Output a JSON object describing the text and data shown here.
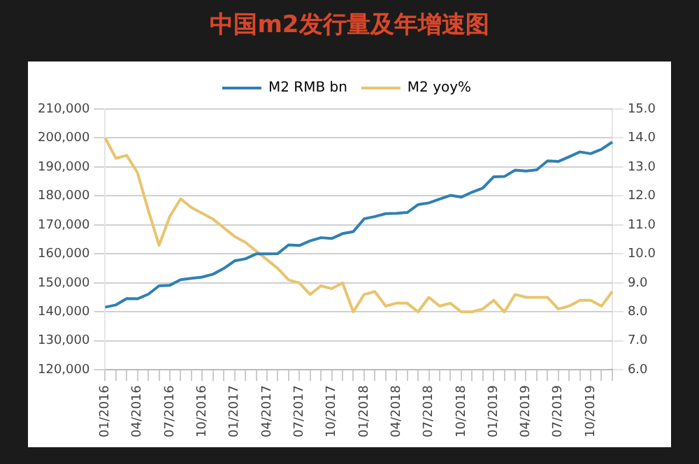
{
  "chart_data": {
    "type": "line",
    "title": "中国m2发行量及年增速图",
    "categories": [
      "01/2016",
      null,
      null,
      "04/2016",
      null,
      null,
      "07/2016",
      null,
      null,
      "10/2016",
      null,
      null,
      "01/2017",
      null,
      null,
      "04/2017",
      null,
      null,
      "07/2017",
      null,
      null,
      "10/2017",
      null,
      null,
      "01/2018",
      null,
      null,
      "04/2018",
      null,
      null,
      "07/2018",
      null,
      null,
      "10/2018",
      null,
      null,
      "01/2019",
      null,
      null,
      "04/2019",
      null,
      null,
      "07/2019",
      null,
      null,
      "10/2019",
      null,
      null
    ],
    "series": [
      {
        "name": "M2 RMB bn",
        "color": "#2f80b2",
        "values": [
          141600,
          142400,
          144600,
          144500,
          146100,
          149000,
          149200,
          151100,
          151600,
          152000,
          153000,
          155000,
          157600,
          158300,
          160000,
          160000,
          160100,
          163100,
          162900,
          164500,
          165600,
          165300,
          167000,
          167700,
          172100,
          172900,
          173900,
          174000,
          174300,
          177000,
          177600,
          178900,
          180200,
          179600,
          181300,
          182700,
          186600,
          186700,
          188900,
          188600,
          189000,
          192100,
          191900,
          193500,
          195200,
          194600,
          196100,
          198600
        ]
      },
      {
        "name": "M2 yoy%",
        "color": "#e8c46c",
        "axis": "y2",
        "values": [
          14.0,
          13.3,
          13.4,
          12.8,
          11.5,
          10.3,
          11.3,
          11.9,
          11.6,
          11.4,
          11.2,
          10.9,
          10.6,
          10.4,
          10.1,
          9.8,
          9.5,
          9.1,
          9.0,
          8.6,
          8.9,
          8.8,
          9.0,
          8.0,
          8.6,
          8.7,
          8.2,
          8.3,
          8.3,
          8.0,
          8.5,
          8.2,
          8.3,
          8.0,
          8.0,
          8.1,
          8.4,
          8.0,
          8.6,
          8.5,
          8.5,
          8.5,
          8.1,
          8.2,
          8.4,
          8.4,
          8.2,
          8.7
        ]
      }
    ],
    "ylim": [
      120000,
      210000
    ],
    "yticks": [
      {
        "value": 120000,
        "label": "120,000"
      },
      {
        "value": 130000,
        "label": "130,000"
      },
      {
        "value": 140000,
        "label": "140,000"
      },
      {
        "value": 150000,
        "label": "150,000"
      },
      {
        "value": 160000,
        "label": "160,000"
      },
      {
        "value": 170000,
        "label": "170,000"
      },
      {
        "value": 180000,
        "label": "180,000"
      },
      {
        "value": 190000,
        "label": "190,000"
      },
      {
        "value": 200000,
        "label": "200,000"
      },
      {
        "value": 210000,
        "label": "210,000"
      }
    ],
    "y2lim": [
      6,
      15
    ],
    "y2ticks": [
      {
        "value": 6,
        "label": "6.0"
      },
      {
        "value": 7,
        "label": "7.0"
      },
      {
        "value": 8,
        "label": "8.0"
      },
      {
        "value": 9,
        "label": "9.0"
      },
      {
        "value": 10,
        "label": "10.0"
      },
      {
        "value": 11,
        "label": "11.0"
      },
      {
        "value": 12,
        "label": "12.0"
      },
      {
        "value": 13,
        "label": "13.0"
      },
      {
        "value": 14,
        "label": "14.0"
      },
      {
        "value": 15,
        "label": "15.0"
      }
    ],
    "grid": "y",
    "legend": "top",
    "marker": "none",
    "line_style": "solid"
  }
}
